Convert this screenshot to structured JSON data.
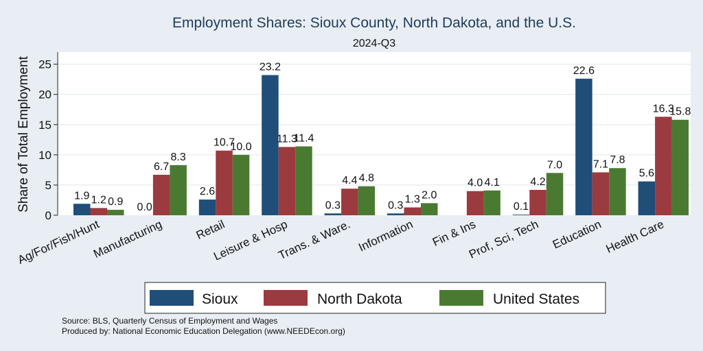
{
  "chart_data": {
    "type": "bar",
    "title": "Employment Shares: Sioux County, North Dakota, and the U.S.",
    "subtitle": "2024-Q3",
    "ylabel": "Share of Total Employment",
    "xlabel": "",
    "ylim": [
      0,
      27
    ],
    "yticks": [
      0,
      5,
      10,
      15,
      20,
      25
    ],
    "grid": true,
    "legend_position": "bottom",
    "categories": [
      "Ag/For/Fish/Hunt",
      "Manufacturing",
      "Retail",
      "Leisure & Hosp",
      "Trans. & Ware.",
      "Information",
      "Fin & Ins",
      "Prof, Sci, Tech",
      "Education",
      "Health Care"
    ],
    "series": [
      {
        "name": "Sioux",
        "color": "#1f4e79",
        "values": [
          1.9,
          0.0,
          2.6,
          23.2,
          0.3,
          0.3,
          null,
          0.1,
          22.6,
          5.6
        ],
        "labels": [
          "1.9",
          "0.0",
          "2.6",
          "23.2",
          "0.3",
          "0.3",
          "",
          "0.1",
          "22.6",
          "5.6"
        ]
      },
      {
        "name": "North Dakota",
        "color": "#9b3a3f",
        "values": [
          1.2,
          6.7,
          10.7,
          11.3,
          4.4,
          1.3,
          4.0,
          4.2,
          7.1,
          16.3
        ],
        "labels": [
          "1.2",
          "6.7",
          "10.7",
          "11.3",
          "4.4",
          "1.3",
          "4.0",
          "4.2",
          "7.1",
          "16.3"
        ]
      },
      {
        "name": "United States",
        "color": "#4a7a32",
        "values": [
          0.9,
          8.3,
          10.0,
          11.4,
          4.8,
          2.0,
          4.1,
          7.0,
          7.8,
          15.8
        ],
        "labels": [
          "0.9",
          "8.3",
          "10.0",
          "11.4",
          "4.8",
          "2.0",
          "4.1",
          "7.0",
          "7.8",
          "15.8"
        ]
      }
    ]
  },
  "footer": {
    "source": "Source: BLS, Quarterly Census of Employment and Wages",
    "produced_by": "Produced by: National Economic Education Delegation (www.NEEDEcon.org)"
  }
}
